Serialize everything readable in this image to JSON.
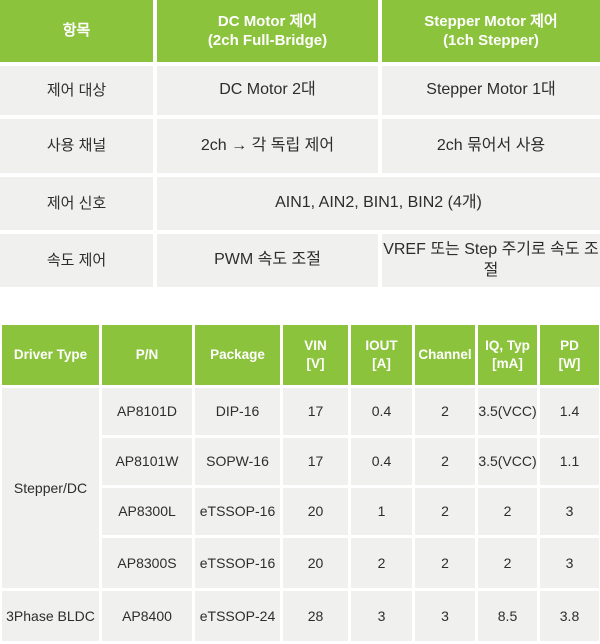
{
  "colors": {
    "header_green": "#8CC33C",
    "cell_gray": "#F0F0EE",
    "header_text": "#FFFFFF",
    "body_text": "#2D2D2D"
  },
  "comparison_table": {
    "header": {
      "col1": "항목",
      "col2_line1": "DC Motor 제어",
      "col2_line2": "(2ch Full-Bridge)",
      "col3_line1": "Stepper Motor 제어",
      "col3_line2": "(1ch Stepper)"
    },
    "rows": [
      {
        "label": "제어 대상",
        "dc": "DC Motor 2대",
        "stepper": "Stepper Motor 1대"
      },
      {
        "label": "사용 채널",
        "dc": "2ch → 각 독립 제어",
        "stepper": "2ch 묶어서 사용"
      },
      {
        "label": "제어 신호",
        "merged": "AIN1, AIN2, BIN1, BIN2 (4개)"
      },
      {
        "label": "속도 제어",
        "dc": "PWM 속도 조절",
        "stepper": "VREF 또는 Step 주기로 속도 조절"
      }
    ]
  },
  "spec_table": {
    "headers": {
      "driver_type": "Driver Type",
      "pn": "P/N",
      "package": "Package",
      "vin_line1": "VIN",
      "vin_line2": "[V]",
      "iout_line1": "IOUT",
      "iout_line2": "[A]",
      "channel": "Channel",
      "iq_line1": "IQ, Typ",
      "iq_line2": "[mA]",
      "pd_line1": "PD",
      "pd_line2": "[W]"
    },
    "groups": {
      "stepper_dc": "Stepper/DC",
      "bldc": "3Phase BLDC"
    },
    "rows": [
      {
        "pn": "AP8101D",
        "package": "DIP-16",
        "vin": "17",
        "iout": "0.4",
        "channel": "2",
        "iq": "3.5(VCC)",
        "pd": "1.4"
      },
      {
        "pn": "AP8101W",
        "package": "SOPW-16",
        "vin": "17",
        "iout": "0.4",
        "channel": "2",
        "iq": "3.5(VCC)",
        "pd": "1.1"
      },
      {
        "pn": "AP8300L",
        "package": "eTSSOP-16",
        "vin": "20",
        "iout": "1",
        "channel": "2",
        "iq": "2",
        "pd": "3"
      },
      {
        "pn": "AP8300S",
        "package": "eTSSOP-16",
        "vin": "20",
        "iout": "2",
        "channel": "2",
        "iq": "2",
        "pd": "3"
      },
      {
        "pn": "AP8400",
        "package": "eTSSOP-24",
        "vin": "28",
        "iout": "3",
        "channel": "3",
        "iq": "8.5",
        "pd": "3.8"
      }
    ]
  }
}
